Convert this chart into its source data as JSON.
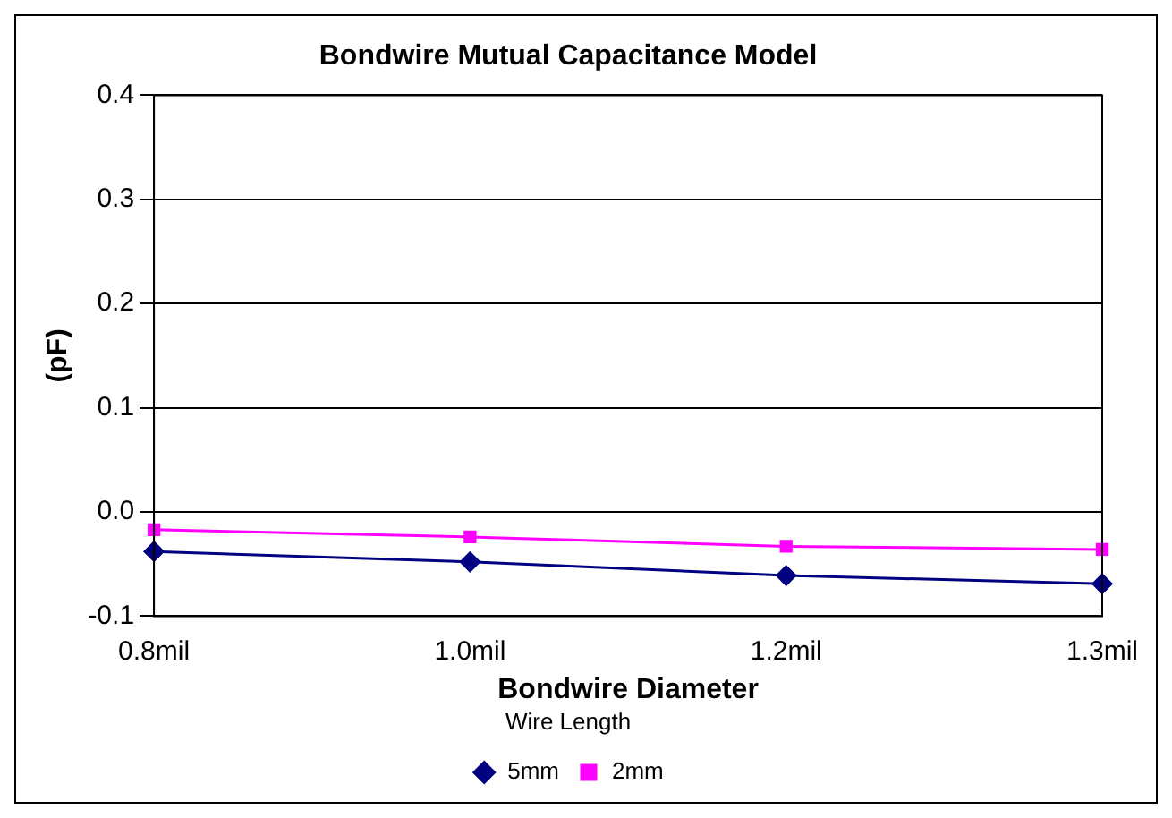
{
  "chart_data": {
    "type": "line",
    "title": "Bondwire Mutual Capacitance Model",
    "xlabel": "Bondwire Diameter",
    "ylabel": "(pF)",
    "legend_title": "Wire Length",
    "categories": [
      "0.8mil",
      "1.0mil",
      "1.2mil",
      "1.3mil"
    ],
    "series": [
      {
        "name": "5mm",
        "color": "#000080",
        "marker": "diamond",
        "values": [
          -0.038,
          -0.048,
          -0.061,
          -0.069
        ]
      },
      {
        "name": "2mm",
        "color": "#ff00ff",
        "marker": "square",
        "values": [
          -0.017,
          -0.024,
          -0.033,
          -0.036
        ]
      }
    ],
    "ylim": [
      -0.1,
      0.4
    ],
    "yticks": [
      {
        "value": -0.1,
        "label": "-0.1"
      },
      {
        "value": 0,
        "label": "0.0"
      },
      {
        "value": 0.1,
        "label": "0.1"
      },
      {
        "value": 0.2,
        "label": "0.2"
      },
      {
        "value": 0.3,
        "label": "0.3"
      },
      {
        "value": 0.4,
        "label": "0.4"
      }
    ],
    "grid": "y",
    "legend": "bottom",
    "line_style": "solid"
  }
}
